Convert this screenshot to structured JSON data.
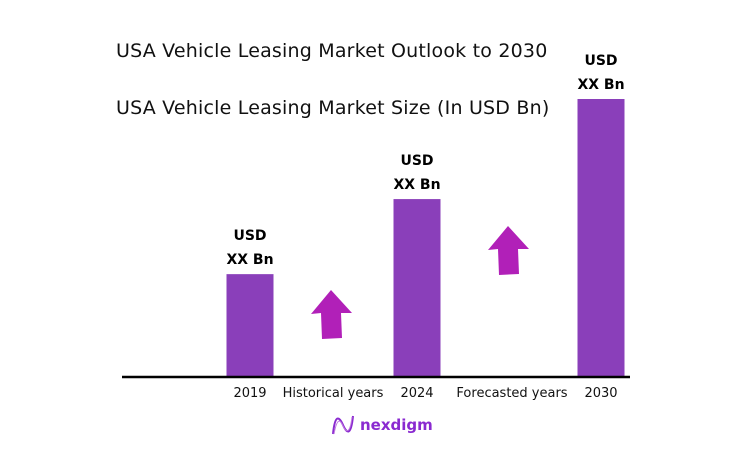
{
  "title": "USA Vehicle Leasing Market Outlook to 2030",
  "subtitle": "USA Vehicle Leasing Market Size (In USD Bn)",
  "chart_data": {
    "type": "bar",
    "categories": [
      "2019",
      "2024",
      "2030"
    ],
    "relative_values": [
      37,
      64,
      100
    ],
    "data_labels": [
      [
        "USD",
        "XX Bn"
      ],
      [
        "USD",
        "XX Bn"
      ],
      [
        "USD",
        "XX Bn"
      ]
    ],
    "period_labels": [
      "Historical years",
      "Forecasted years"
    ],
    "bar_color": "#8a3fba",
    "arrow_color": "#b120b8",
    "grid": false,
    "legend": "none"
  },
  "logo": {
    "text": "nexdigm"
  }
}
